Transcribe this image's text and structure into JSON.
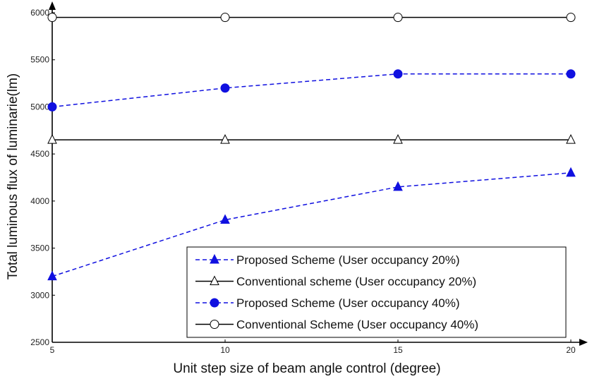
{
  "chart_data": {
    "type": "line",
    "xlabel": "Unit step size of beam angle control (degree)",
    "ylabel": "Total luminous flux of luminarie(lm)",
    "x": [
      5,
      10,
      15,
      20
    ],
    "xlim": [
      5,
      20
    ],
    "ylim": [
      2500,
      6000
    ],
    "xticks": [
      "5",
      "10",
      "15",
      "20"
    ],
    "yticks": [
      "2500",
      "3000",
      "3500",
      "4000",
      "4500",
      "5000",
      "5500",
      "6000"
    ],
    "grid": false,
    "legend_position": "bottom-right",
    "series": [
      {
        "name": "Proposed Scheme (User occupancy 20%)",
        "values": [
          3200,
          3800,
          4150,
          4300
        ],
        "color": "#1010e0",
        "marker": "filled-triangle",
        "line": "dashed"
      },
      {
        "name": "Conventional scheme (User occupancy 20%)",
        "values": [
          4650,
          4650,
          4650,
          4650
        ],
        "color": "#000000",
        "marker": "open-triangle",
        "line": "solid"
      },
      {
        "name": "Proposed Scheme (User occupancy 40%)",
        "values": [
          5000,
          5200,
          5350,
          5350
        ],
        "color": "#1010e0",
        "marker": "filled-circle",
        "line": "dashed"
      },
      {
        "name": "Conventional Scheme (User occupancy 40%)",
        "values": [
          5950,
          5950,
          5950,
          5950
        ],
        "color": "#000000",
        "marker": "open-circle",
        "line": "solid"
      }
    ]
  }
}
